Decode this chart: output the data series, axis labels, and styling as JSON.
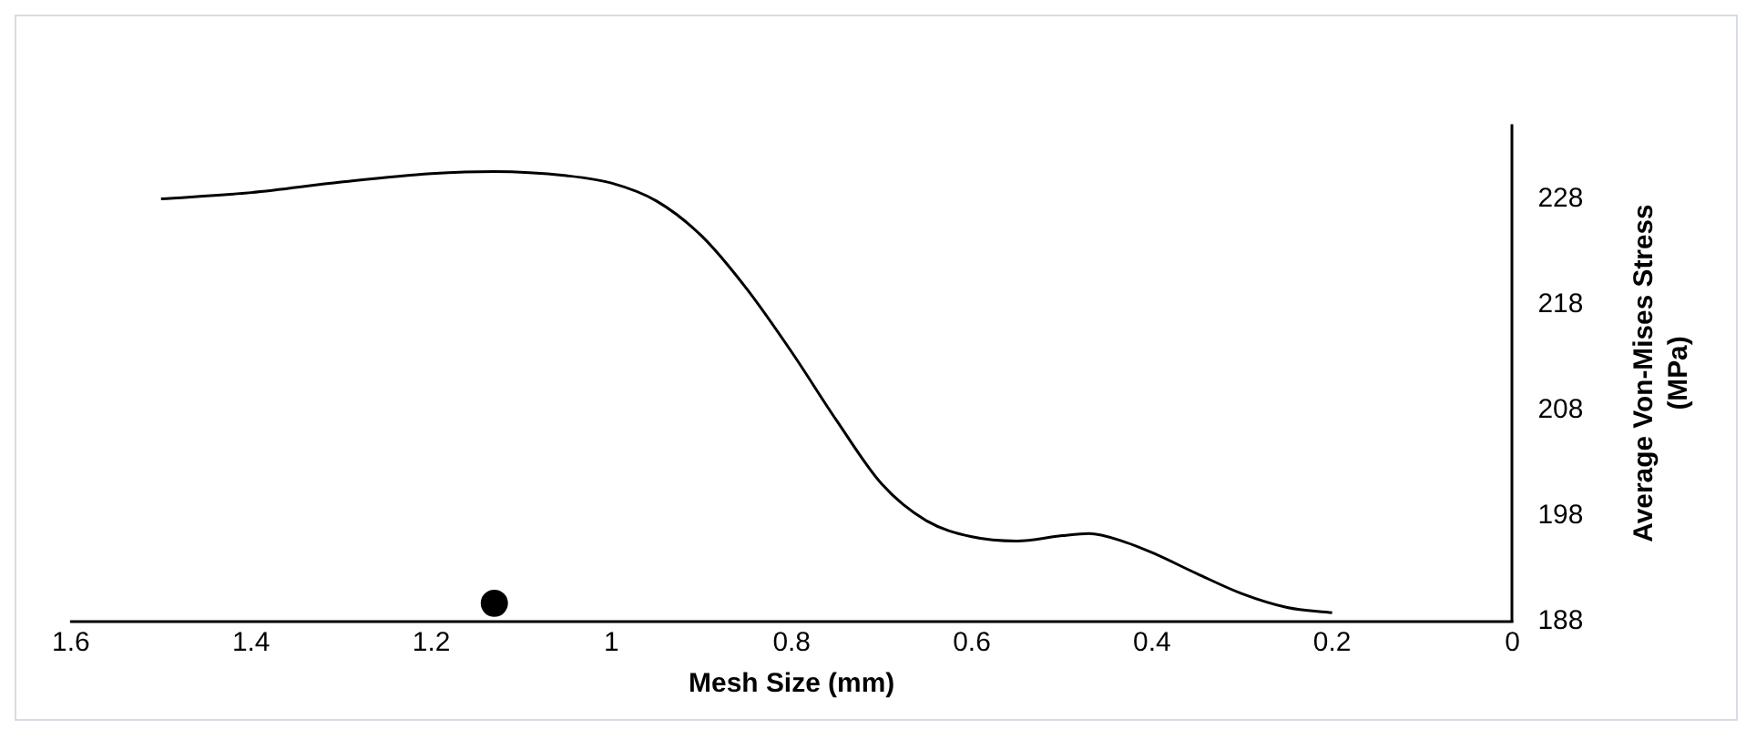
{
  "chart_data": {
    "type": "line",
    "xlabel": "Mesh Size (mm)",
    "ylabel": "Average Von-Mises Stress\n(MPa)",
    "xlim": [
      1.6,
      0
    ],
    "xticks": [
      1.6,
      1.4,
      1.2,
      1,
      0.8,
      0.6,
      0.4,
      0.2,
      0
    ],
    "ylim": [
      188,
      235
    ],
    "yticks": [
      188,
      198,
      208,
      218,
      228
    ],
    "grid": false,
    "legend": false,
    "series": [
      {
        "color": "#000000",
        "marker": "none",
        "line_style": "solid",
        "x": [
          1.5,
          1.4,
          1.3,
          1.2,
          1.13,
          1.05,
          1.0,
          0.95,
          0.9,
          0.85,
          0.8,
          0.75,
          0.7,
          0.65,
          0.6,
          0.55,
          0.5,
          0.47,
          0.43,
          0.4,
          0.35,
          0.3,
          0.25,
          0.2
        ],
        "values": [
          228,
          228.6,
          229.6,
          230.4,
          230.6,
          230.2,
          229.5,
          227.8,
          224.5,
          219.5,
          213.5,
          207,
          201,
          197.5,
          196,
          195.6,
          196.1,
          196.3,
          195.5,
          194.5,
          192.5,
          190.6,
          189.3,
          188.8
        ]
      },
      {
        "type": "scatter",
        "color": "#000000",
        "marker": "circle",
        "x": [
          1.13
        ],
        "values": [
          189.7
        ]
      }
    ]
  }
}
